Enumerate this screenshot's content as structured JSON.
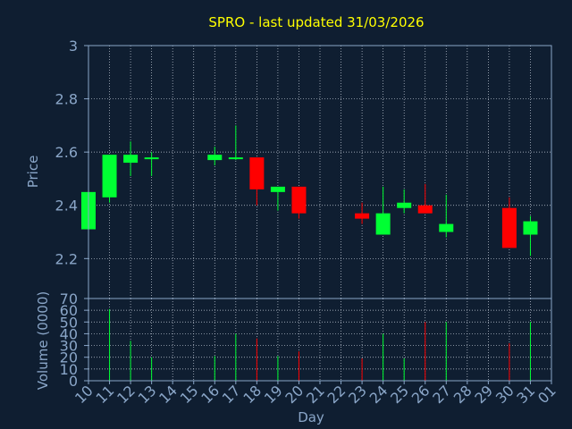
{
  "chart_data": {
    "type": "candlestick",
    "title": "SPRO - last updated 31/03/2026",
    "xlabel": "Day",
    "ylabel_price": "Price",
    "ylabel_volume": "Volume (0000)",
    "x_ticks": [
      "10",
      "11",
      "12",
      "13",
      "14",
      "15",
      "16",
      "17",
      "18",
      "19",
      "20",
      "21",
      "22",
      "23",
      "24",
      "25",
      "26",
      "27",
      "28",
      "29",
      "30",
      "31",
      "01"
    ],
    "price_ylim": [
      2.05,
      3.0
    ],
    "price_ticks": [
      "2.2",
      "2.4",
      "2.6",
      "2.8",
      "3"
    ],
    "volume_ylim": [
      0,
      70
    ],
    "volume_ticks": [
      "0",
      "10",
      "20",
      "30",
      "40",
      "50",
      "60",
      "70"
    ],
    "grid": true,
    "colors": {
      "background": "#0f1e31",
      "axis": "#8aa6c8",
      "grid": "#c8d0dc",
      "title": "#ffff00",
      "up": "#00ff33",
      "down": "#ff0000"
    },
    "candles": [
      {
        "day": 10,
        "open": 2.31,
        "high": 2.45,
        "low": 2.31,
        "close": 2.45,
        "volume": 0
      },
      {
        "day": 11,
        "open": 2.43,
        "high": 2.59,
        "low": 2.41,
        "close": 2.59,
        "volume": 61
      },
      {
        "day": 12,
        "open": 2.56,
        "high": 2.64,
        "low": 2.51,
        "close": 2.59,
        "volume": 34
      },
      {
        "day": 13,
        "open": 2.58,
        "high": 2.6,
        "low": 2.51,
        "close": 2.58,
        "volume": 20
      },
      {
        "day": 16,
        "open": 2.57,
        "high": 2.62,
        "low": 2.55,
        "close": 2.59,
        "volume": 21
      },
      {
        "day": 17,
        "open": 2.58,
        "high": 2.7,
        "low": 2.57,
        "close": 2.58,
        "volume": 40
      },
      {
        "day": 18,
        "open": 2.58,
        "high": 2.58,
        "low": 2.4,
        "close": 2.46,
        "volume": 36
      },
      {
        "day": 19,
        "open": 2.45,
        "high": 2.47,
        "low": 2.38,
        "close": 2.47,
        "volume": 21
      },
      {
        "day": 20,
        "open": 2.47,
        "high": 2.47,
        "low": 2.35,
        "close": 2.37,
        "volume": 25
      },
      {
        "day": 23,
        "open": 2.37,
        "high": 2.41,
        "low": 2.33,
        "close": 2.35,
        "volume": 19
      },
      {
        "day": 24,
        "open": 2.29,
        "high": 2.47,
        "low": 2.29,
        "close": 2.37,
        "volume": 40
      },
      {
        "day": 25,
        "open": 2.39,
        "high": 2.46,
        "low": 2.37,
        "close": 2.41,
        "volume": 19
      },
      {
        "day": 26,
        "open": 2.4,
        "high": 2.48,
        "low": 2.37,
        "close": 2.37,
        "volume": 50
      },
      {
        "day": 27,
        "open": 2.3,
        "high": 2.44,
        "low": 2.28,
        "close": 2.33,
        "volume": 50
      },
      {
        "day": 30,
        "open": 2.39,
        "high": 2.43,
        "low": 2.24,
        "close": 2.24,
        "volume": 32
      },
      {
        "day": 31,
        "open": 2.29,
        "high": 2.36,
        "low": 2.21,
        "close": 2.34,
        "volume": 50
      }
    ]
  }
}
